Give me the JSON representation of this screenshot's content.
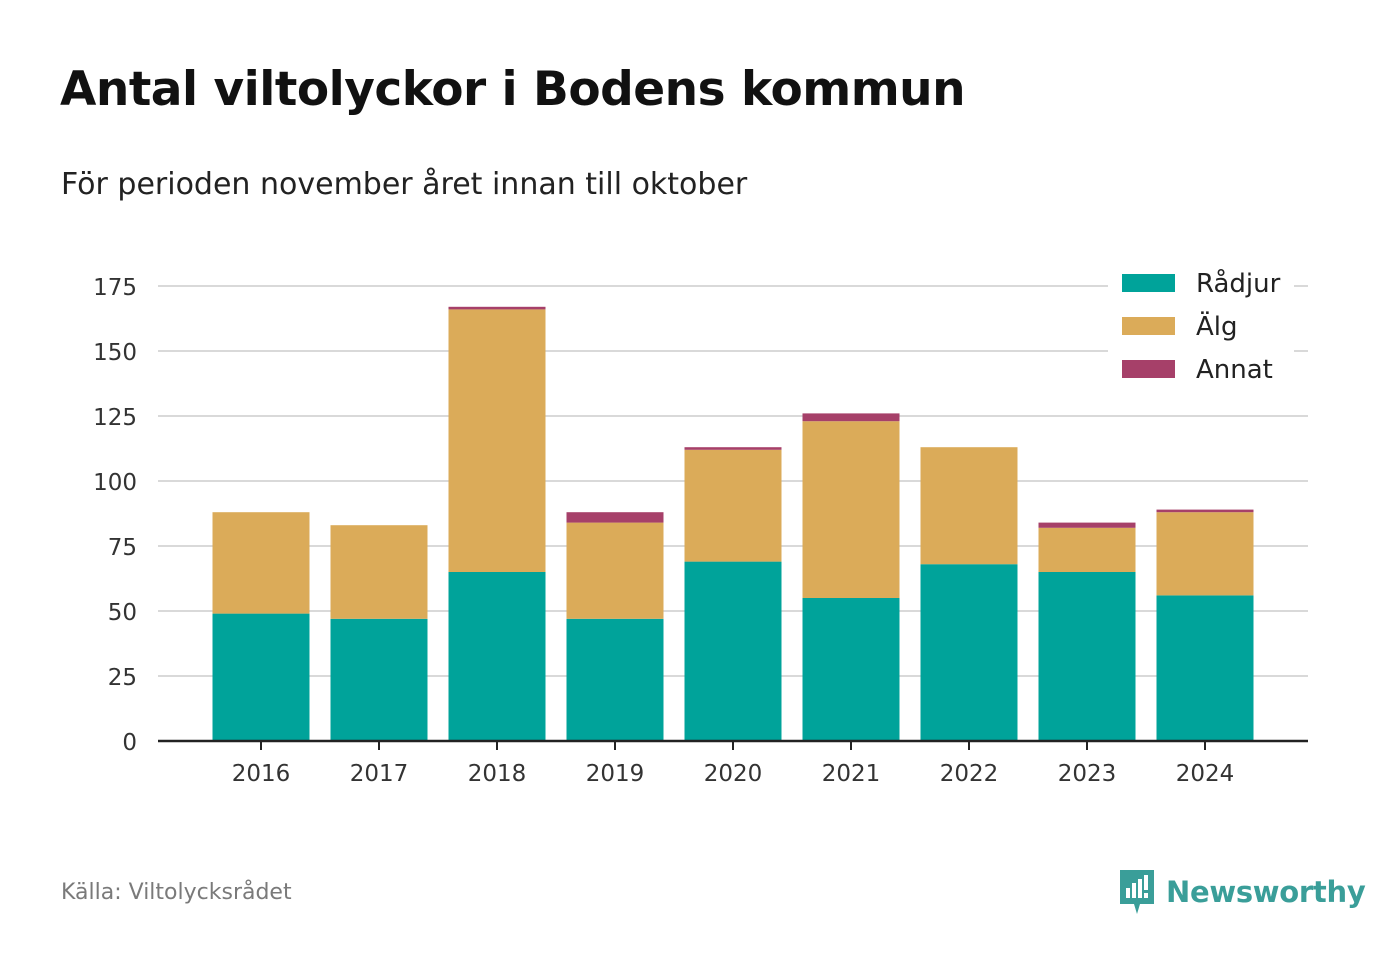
{
  "title": "Antal viltolyckor i Bodens kommun",
  "subtitle": "För perioden november året innan till oktober",
  "source": "Källa: Viltolycksrådet",
  "brand": {
    "name": "Newsworthy",
    "icon": "newsworthy-logo-icon",
    "color": "#3a9e99"
  },
  "chart_data": {
    "type": "bar",
    "stacked": true,
    "title": "Antal viltolyckor i Bodens kommun",
    "subtitle": "För perioden november året innan till oktober",
    "xlabel": "",
    "ylabel": "",
    "categories": [
      "2016",
      "2017",
      "2018",
      "2019",
      "2020",
      "2021",
      "2022",
      "2023",
      "2024"
    ],
    "series": [
      {
        "name": "Rådjur",
        "color": "#00a39a",
        "values": [
          49,
          47,
          65,
          47,
          69,
          55,
          68,
          65,
          56
        ]
      },
      {
        "name": "Älg",
        "color": "#dbab59",
        "values": [
          39,
          36,
          101,
          37,
          43,
          68,
          45,
          17,
          32
        ]
      },
      {
        "name": "Annat",
        "color": "#a64069",
        "values": [
          0,
          0,
          1,
          4,
          1,
          3,
          0,
          2,
          1
        ]
      }
    ],
    "ylim": [
      0,
      175
    ],
    "yticks": [
      0,
      25,
      50,
      75,
      100,
      125,
      150,
      175
    ],
    "grid": true,
    "legend_position": "top-right"
  }
}
